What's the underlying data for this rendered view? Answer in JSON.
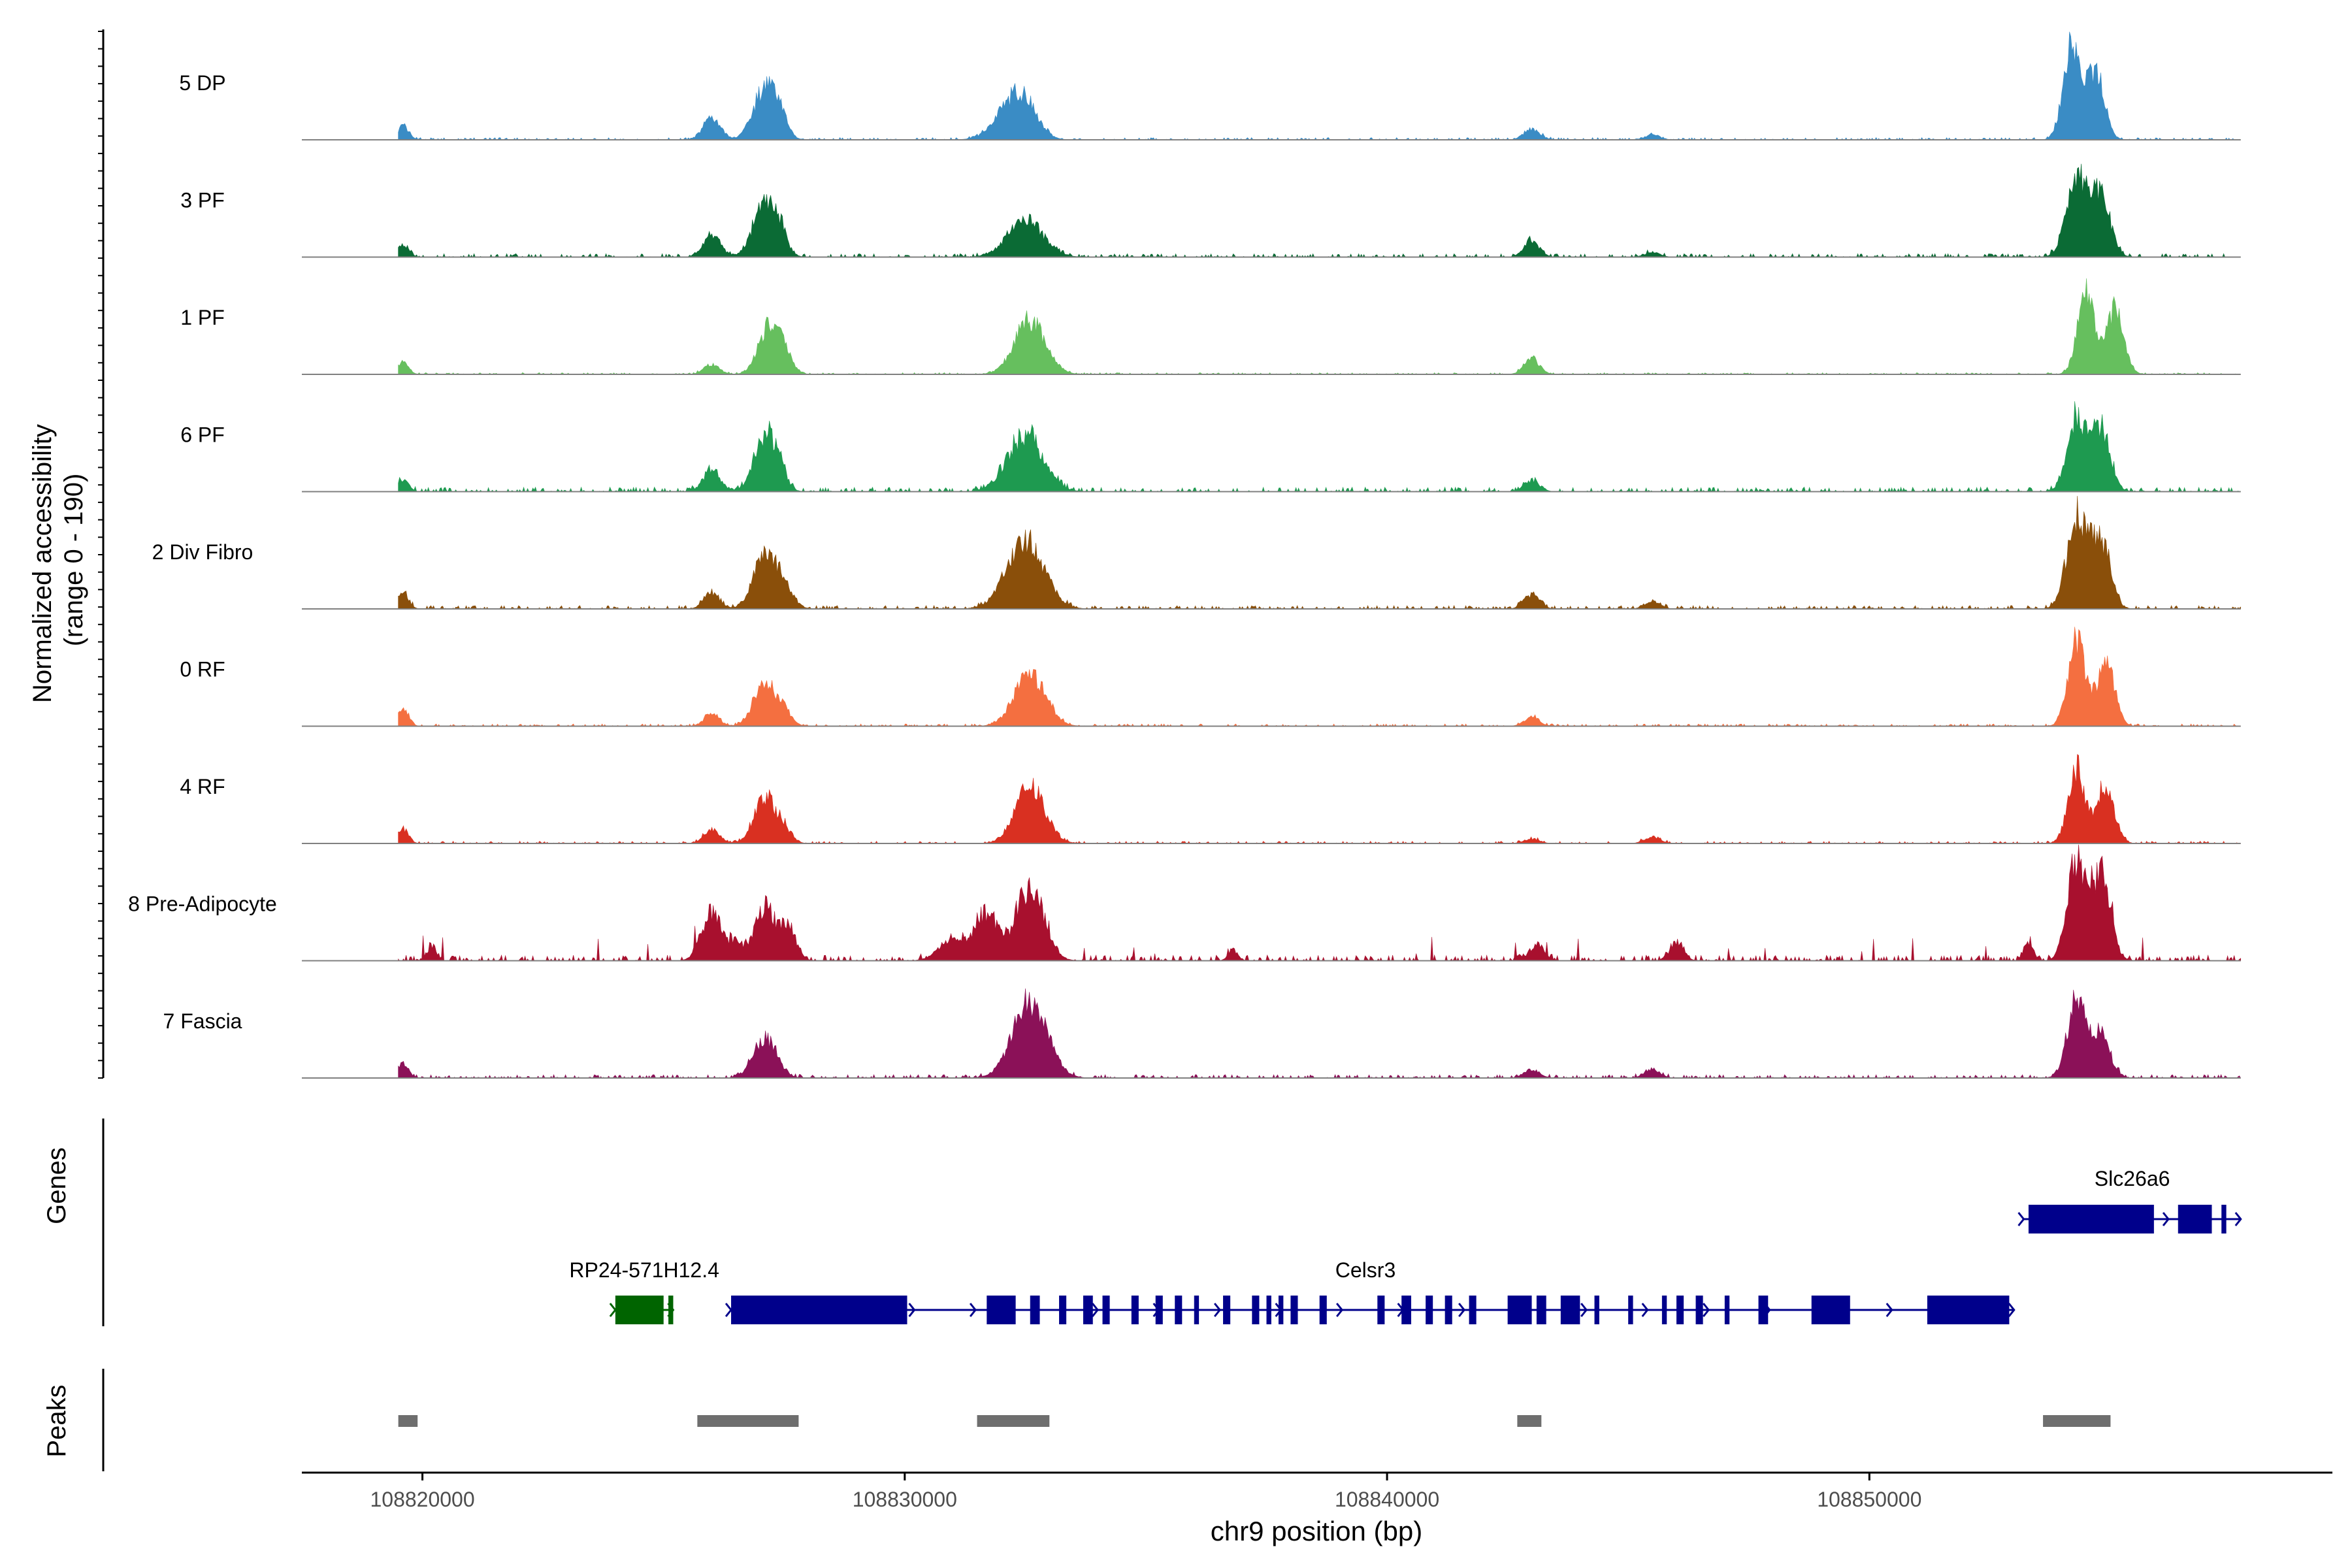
{
  "chart_data": {
    "type": "area",
    "title": "",
    "y_axis_label_line1": "Normalized accessibility",
    "y_axis_label_line2": "(range 0 - 190)",
    "yrange": [
      0,
      190
    ],
    "xlabel": "chr9 position (bp)",
    "xlim": [
      108817500,
      108859600
    ],
    "x_ticks": [
      108820000,
      108830000,
      108840000,
      108850000
    ],
    "x_tick_labels": [
      "108820000",
      "108830000",
      "108840000",
      "108850000"
    ],
    "signal_extent": [
      108819500,
      108857700
    ],
    "tracks": [
      {
        "name": "5 DP",
        "color": "#3a8cc5",
        "peaks": [
          [
            108819600,
            25,
            70
          ],
          [
            108826000,
            40,
            110
          ],
          [
            108827100,
            90,
            150
          ],
          [
            108827400,
            30,
            100
          ],
          [
            108832200,
            50,
            220
          ],
          [
            108832500,
            45,
            170
          ],
          [
            108843000,
            20,
            100
          ],
          [
            108845500,
            8,
            100
          ],
          [
            108854200,
            165,
            110
          ],
          [
            108854700,
            120,
            110
          ]
        ],
        "noise": 4
      },
      {
        "name": "3 PF",
        "color": "#0b6b35",
        "peaks": [
          [
            108819600,
            22,
            70
          ],
          [
            108826000,
            40,
            110
          ],
          [
            108827100,
            95,
            150
          ],
          [
            108827400,
            30,
            100
          ],
          [
            108832500,
            65,
            230
          ],
          [
            108843000,
            28,
            100
          ],
          [
            108845500,
            8,
            100
          ],
          [
            108854300,
            150,
            130
          ],
          [
            108854800,
            110,
            120
          ]
        ],
        "noise": 6
      },
      {
        "name": "1 PF",
        "color": "#66bf5e",
        "peaks": [
          [
            108819600,
            22,
            70
          ],
          [
            108826000,
            18,
            100
          ],
          [
            108827200,
            85,
            140
          ],
          [
            108827500,
            25,
            100
          ],
          [
            108832600,
            95,
            200
          ],
          [
            108843000,
            28,
            100
          ],
          [
            108854500,
            150,
            110
          ],
          [
            108855100,
            115,
            110
          ]
        ],
        "noise": 3
      },
      {
        "name": "6 PF",
        "color": "#1e9a50",
        "peaks": [
          [
            108819600,
            22,
            70
          ],
          [
            108826000,
            38,
            110
          ],
          [
            108827100,
            95,
            140
          ],
          [
            108827400,
            25,
            100
          ],
          [
            108832500,
            100,
            230
          ],
          [
            108843000,
            20,
            100
          ],
          [
            108854300,
            130,
            120
          ],
          [
            108854800,
            110,
            120
          ]
        ],
        "noise": 8
      },
      {
        "name": "2 Div Fibro",
        "color": "#8a4f0a",
        "peaks": [
          [
            108819600,
            30,
            70
          ],
          [
            108826000,
            30,
            100
          ],
          [
            108827100,
            90,
            150
          ],
          [
            108827500,
            35,
            120
          ],
          [
            108832500,
            120,
            240
          ],
          [
            108843000,
            25,
            100
          ],
          [
            108845500,
            12,
            100
          ],
          [
            108854300,
            160,
            130
          ],
          [
            108854800,
            120,
            120
          ]
        ],
        "noise": 6
      },
      {
        "name": "0 RF",
        "color": "#f46f40",
        "peaks": [
          [
            108819600,
            30,
            70
          ],
          [
            108826000,
            20,
            100
          ],
          [
            108827100,
            80,
            140
          ],
          [
            108827500,
            22,
            100
          ],
          [
            108832600,
            90,
            200
          ],
          [
            108843000,
            15,
            100
          ],
          [
            108854300,
            150,
            110
          ],
          [
            108854900,
            115,
            110
          ]
        ],
        "noise": 4
      },
      {
        "name": "4 RF",
        "color": "#d93021",
        "peaks": [
          [
            108819600,
            25,
            70
          ],
          [
            108826000,
            25,
            100
          ],
          [
            108827100,
            80,
            140
          ],
          [
            108827500,
            22,
            100
          ],
          [
            108832600,
            100,
            190
          ],
          [
            108843000,
            8,
            100
          ],
          [
            108845500,
            12,
            100
          ],
          [
            108854300,
            130,
            110
          ],
          [
            108854900,
            105,
            110
          ]
        ],
        "noise": 4
      },
      {
        "name": "8 Pre-Adipocyte",
        "color": "#a8102e",
        "peaks": [
          [
            108820200,
            25,
            60
          ],
          [
            108826000,
            85,
            130
          ],
          [
            108826500,
            30,
            80
          ],
          [
            108827100,
            95,
            140
          ],
          [
            108827600,
            55,
            100
          ],
          [
            108831000,
            35,
            180
          ],
          [
            108831700,
            80,
            150
          ],
          [
            108832600,
            130,
            180
          ],
          [
            108836800,
            20,
            60
          ],
          [
            108843100,
            25,
            100
          ],
          [
            108846000,
            30,
            90
          ],
          [
            108854300,
            175,
            120
          ],
          [
            108854800,
            150,
            120
          ],
          [
            108853300,
            30,
            60
          ]
        ],
        "noise": 10
      },
      {
        "name": "7 Fascia",
        "color": "#8b1158",
        "peaks": [
          [
            108819600,
            25,
            70
          ],
          [
            108827100,
            70,
            150
          ],
          [
            108832600,
            135,
            220
          ],
          [
            108843000,
            15,
            100
          ],
          [
            108845500,
            15,
            100
          ],
          [
            108854300,
            135,
            120
          ],
          [
            108854800,
            75,
            120
          ]
        ],
        "noise": 6
      }
    ],
    "genes_label": "Genes",
    "genes": [
      {
        "name": "Slc26a6",
        "color": "#00008b",
        "strand": "+",
        "start": 108853200,
        "end": 108857700,
        "row": 0,
        "exons": [
          [
            108853300,
            108855900
          ],
          [
            108856400,
            108857100
          ],
          [
            108857300,
            108857400
          ]
        ]
      },
      {
        "name": "RP24-571H12.4",
        "color": "#006400",
        "strand": "+",
        "start": 108824000,
        "end": 108825200,
        "row": 1,
        "exons": [
          [
            108824000,
            108825000
          ],
          [
            108825100,
            108825200
          ]
        ]
      },
      {
        "name": "Celsr3",
        "color": "#00008b",
        "strand": "+",
        "start": 108826400,
        "end": 108853000,
        "row": 1,
        "exons": [
          [
            108826400,
            108830050
          ],
          [
            108831700,
            108832300
          ],
          [
            108832600,
            108832800
          ],
          [
            108833200,
            108833350
          ],
          [
            108833700,
            108833900
          ],
          [
            108834100,
            108834250
          ],
          [
            108834700,
            108834850
          ],
          [
            108835200,
            108835350
          ],
          [
            108835600,
            108835750
          ],
          [
            108836000,
            108836100
          ],
          [
            108836600,
            108836750
          ],
          [
            108837200,
            108837350
          ],
          [
            108837500,
            108837600
          ],
          [
            108837750,
            108837850
          ],
          [
            108838000,
            108838150
          ],
          [
            108838600,
            108838750
          ],
          [
            108839800,
            108839950
          ],
          [
            108840300,
            108840500
          ],
          [
            108840800,
            108840950
          ],
          [
            108841200,
            108841350
          ],
          [
            108841700,
            108841850
          ],
          [
            108842500,
            108843000
          ],
          [
            108843100,
            108843300
          ],
          [
            108843600,
            108844000
          ],
          [
            108844300,
            108844400
          ],
          [
            108845000,
            108845100
          ],
          [
            108845700,
            108845800
          ],
          [
            108846000,
            108846150
          ],
          [
            108846400,
            108846550
          ],
          [
            108847000,
            108847100
          ],
          [
            108847700,
            108847900
          ],
          [
            108848800,
            108849600
          ],
          [
            108851200,
            108852900
          ]
        ]
      }
    ],
    "peaks_label": "Peaks",
    "peak_regions": [
      [
        108819500,
        108819900
      ],
      [
        108825700,
        108827800
      ],
      [
        108831500,
        108833000
      ],
      [
        108842700,
        108843200
      ],
      [
        108853600,
        108855000
      ]
    ]
  }
}
